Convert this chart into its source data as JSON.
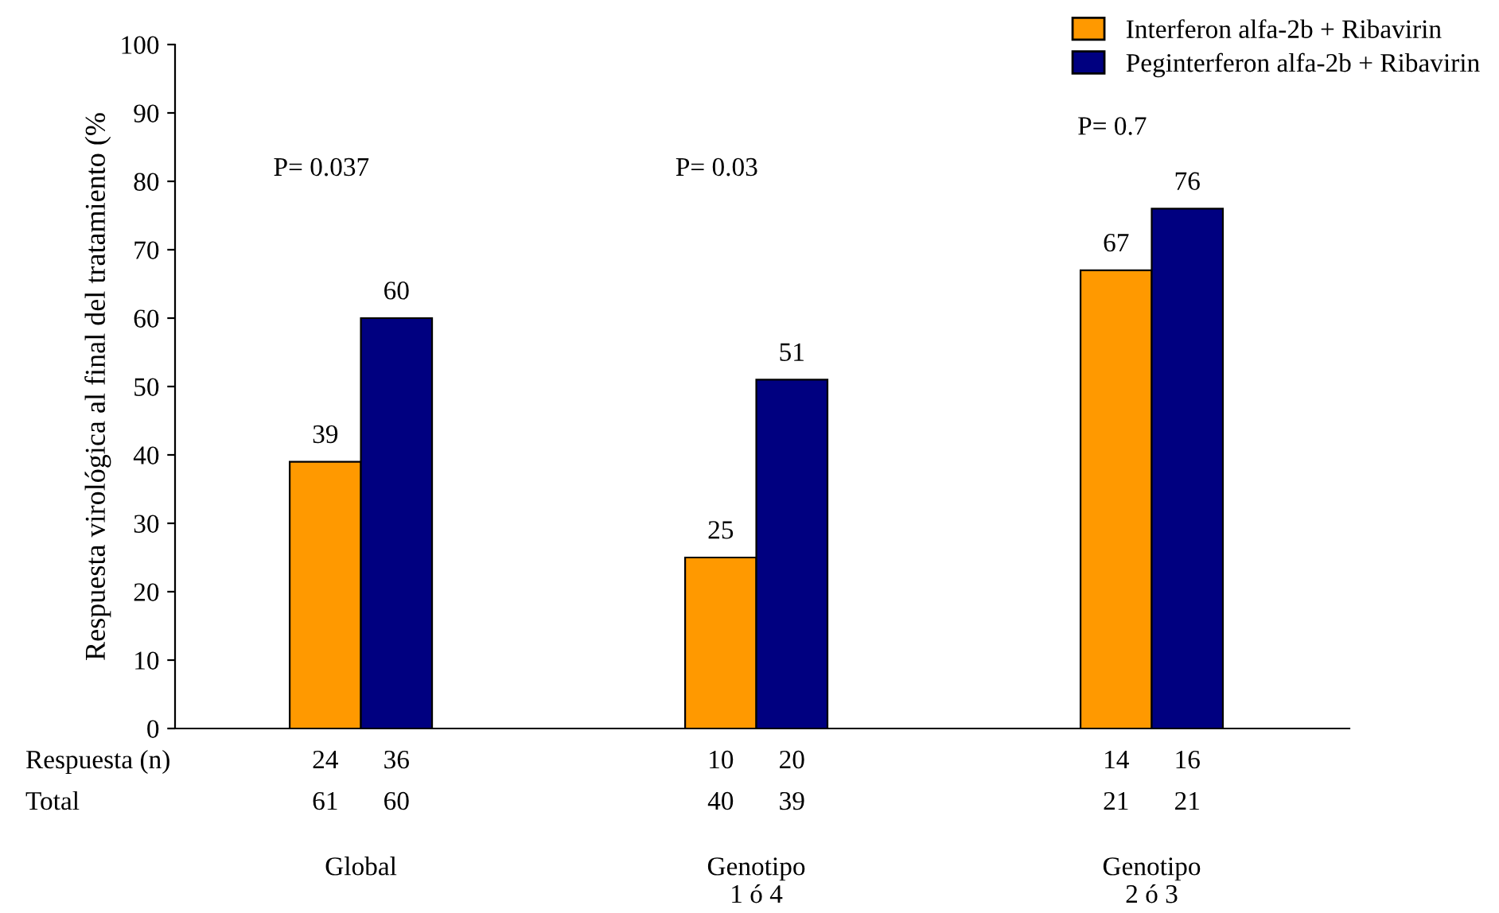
{
  "chart_data": {
    "type": "bar",
    "ylabel": "Respuesta virológica al final del tratamiento (%",
    "categories": [
      "Global",
      "Genotipo\n1 ó 4",
      "Genotipo\n2 ó 3"
    ],
    "series": [
      {
        "name": "Interferon alfa-2b + Ribavirin",
        "color": "#ff9900",
        "values": [
          39,
          25,
          67
        ]
      },
      {
        "name": "Peginterferon alfa-2b + Ribavirin",
        "color": "#000080",
        "values": [
          60,
          51,
          76
        ]
      }
    ],
    "ylim": [
      0,
      100
    ],
    "yticks": [
      0,
      10,
      20,
      30,
      40,
      50,
      60,
      70,
      80,
      90,
      100
    ],
    "data_labels": true,
    "legend": "top right",
    "grid": false,
    "annotations": [
      "P= 0.037",
      "P= 0.03",
      "P= 0.7",
      "Respuesta (n)",
      "24",
      "36",
      "10",
      "20",
      "14",
      "16",
      "Total",
      "61",
      "60",
      "40",
      "39",
      "21",
      "21"
    ]
  }
}
